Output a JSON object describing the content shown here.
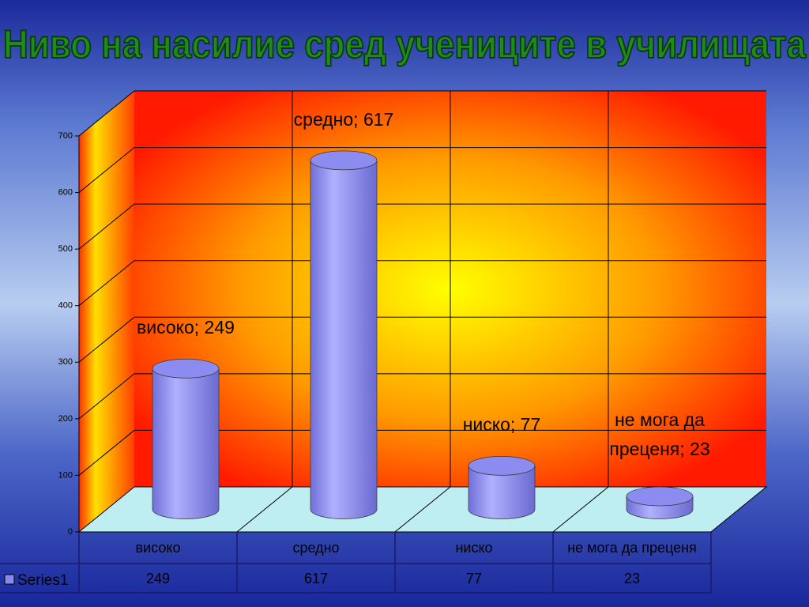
{
  "chart_data": {
    "type": "cylinder",
    "title": "Ниво на насилие сред учениците в училищата",
    "categories": [
      "високо",
      "средно",
      "ниско",
      "не мога да преценя"
    ],
    "series": [
      {
        "name": "Series1",
        "color": "#8888ee",
        "values": [
          249,
          617,
          77,
          23
        ],
        "value_labels": [
          "високо; 249",
          "средно; 617",
          "ниско; 77",
          "не мога да преценя; 23"
        ]
      }
    ],
    "ylim": [
      0,
      700
    ],
    "yticks": [
      0,
      100,
      200,
      300,
      400,
      500,
      600,
      700
    ],
    "grid": true
  }
}
